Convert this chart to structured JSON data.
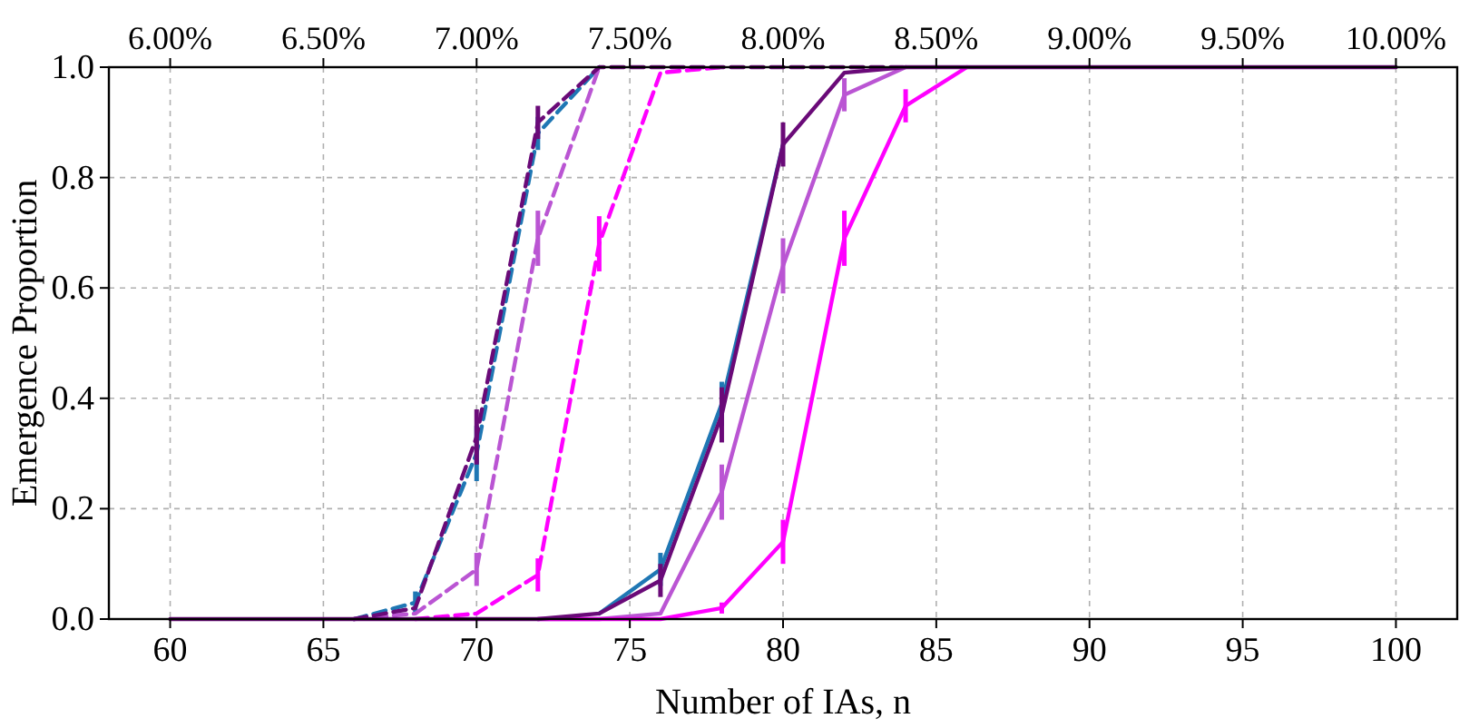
{
  "chart_data": {
    "type": "line",
    "xlabel": "Number of IAs, n",
    "ylabel": "Emergence Proportion",
    "x": [
      60,
      62,
      64,
      66,
      68,
      70,
      72,
      74,
      76,
      78,
      80,
      82,
      84,
      86,
      88,
      90,
      92,
      94,
      96,
      98,
      100
    ],
    "series": [
      {
        "color": "#1f77b4",
        "line_style": "dashed",
        "values": [
          null,
          null,
          null,
          0,
          0.03,
          0.3,
          0.88,
          1,
          null,
          null,
          null,
          null,
          null,
          null,
          null,
          null,
          null,
          null,
          null,
          null,
          null
        ],
        "errors": [
          null,
          null,
          null,
          null,
          0.02,
          0.05,
          0.03,
          null,
          null,
          null,
          null,
          null,
          null,
          null,
          null,
          null,
          null,
          null,
          null,
          null,
          null
        ]
      },
      {
        "color": "#ba55d3",
        "line_style": "dashed",
        "values": [
          null,
          null,
          null,
          0,
          0.01,
          0.09,
          0.69,
          1,
          null,
          null,
          null,
          null,
          null,
          null,
          null,
          null,
          null,
          null,
          null,
          null,
          null
        ],
        "errors": [
          null,
          null,
          null,
          null,
          null,
          0.03,
          0.05,
          null,
          null,
          null,
          null,
          null,
          null,
          null,
          null,
          null,
          null,
          null,
          null,
          null,
          null
        ]
      },
      {
        "color": "#ff00ff",
        "line_style": "dashed",
        "values": [
          null,
          null,
          null,
          null,
          0,
          0.01,
          0.08,
          0.68,
          0.99,
          1,
          null,
          null,
          null,
          null,
          null,
          null,
          null,
          null,
          null,
          null,
          null
        ],
        "errors": [
          null,
          null,
          null,
          null,
          null,
          null,
          0.03,
          0.05,
          null,
          null,
          null,
          null,
          null,
          null,
          null,
          null,
          null,
          null,
          null,
          null,
          null
        ]
      },
      {
        "color": "#6a0a78",
        "line_style": "dashed",
        "values": [
          null,
          null,
          null,
          0,
          0.02,
          0.33,
          0.9,
          1,
          1,
          1,
          1,
          1,
          1,
          null,
          null,
          null,
          null,
          null,
          null,
          null,
          null
        ],
        "errors": [
          null,
          null,
          null,
          null,
          null,
          0.05,
          0.03,
          null,
          null,
          null,
          null,
          null,
          null,
          null,
          null,
          null,
          null,
          null,
          null,
          null,
          null
        ]
      },
      {
        "color": "#1f77b4",
        "line_style": "solid",
        "values": [
          null,
          null,
          null,
          null,
          null,
          null,
          null,
          0.01,
          0.09,
          0.39,
          0.86,
          null,
          null,
          null,
          null,
          null,
          null,
          null,
          null,
          null,
          null
        ],
        "errors": [
          null,
          null,
          null,
          null,
          null,
          null,
          null,
          null,
          0.03,
          0.04,
          null,
          null,
          null,
          null,
          null,
          null,
          null,
          null,
          null,
          null,
          null
        ]
      },
      {
        "color": "#ba55d3",
        "line_style": "solid",
        "values": [
          null,
          null,
          null,
          null,
          null,
          null,
          0,
          0,
          0.01,
          0.23,
          0.64,
          0.95,
          1,
          null,
          null,
          null,
          null,
          null,
          null,
          null,
          null
        ],
        "errors": [
          null,
          null,
          null,
          null,
          null,
          null,
          null,
          null,
          null,
          0.05,
          0.05,
          0.03,
          null,
          null,
          null,
          null,
          null,
          null,
          null,
          null,
          null
        ]
      },
      {
        "color": "#ff00ff",
        "line_style": "solid",
        "values": [
          null,
          null,
          null,
          null,
          null,
          null,
          0,
          0,
          0,
          0.02,
          0.14,
          0.69,
          0.93,
          1,
          null,
          null,
          null,
          null,
          null,
          null,
          null
        ],
        "errors": [
          null,
          null,
          null,
          null,
          null,
          null,
          null,
          null,
          null,
          0.01,
          0.04,
          0.05,
          0.03,
          null,
          null,
          null,
          null,
          null,
          null,
          null,
          null
        ]
      },
      {
        "color": "#6a0a78",
        "line_style": "solid",
        "values": [
          0,
          0,
          0,
          0,
          0,
          0,
          0,
          0.01,
          0.07,
          0.37,
          0.86,
          0.99,
          1,
          1,
          1,
          1,
          1,
          1,
          1,
          1,
          1
        ],
        "errors": [
          null,
          null,
          null,
          null,
          null,
          null,
          null,
          null,
          0.03,
          0.05,
          0.04,
          null,
          null,
          null,
          null,
          null,
          null,
          null,
          null,
          null,
          null
        ]
      }
    ],
    "xlim": [
      58,
      102
    ],
    "xticks": [
      60,
      65,
      70,
      75,
      80,
      85,
      90,
      95,
      100
    ],
    "ylim": [
      0,
      1
    ],
    "yticks": [
      {
        "value": 0,
        "label": "0.0"
      },
      {
        "value": 0.2,
        "label": "0.2"
      },
      {
        "value": 0.4,
        "label": "0.4"
      },
      {
        "value": 0.6,
        "label": "0.6"
      },
      {
        "value": 0.8,
        "label": "0.8"
      },
      {
        "value": 1,
        "label": "1.0"
      }
    ],
    "x2lim": [
      5.8,
      10.2
    ],
    "x2ticks": [
      {
        "value": 6,
        "label": "6.00%"
      },
      {
        "value": 6.5,
        "label": "6.50%"
      },
      {
        "value": 7,
        "label": "7.00%"
      },
      {
        "value": 7.5,
        "label": "7.50%"
      },
      {
        "value": 8,
        "label": "8.00%"
      },
      {
        "value": 8.5,
        "label": "8.50%"
      },
      {
        "value": 9,
        "label": "9.00%"
      },
      {
        "value": 9.5,
        "label": "9.50%"
      },
      {
        "value": 10,
        "label": "10.00%"
      }
    ],
    "grid": true,
    "marker": "none"
  }
}
